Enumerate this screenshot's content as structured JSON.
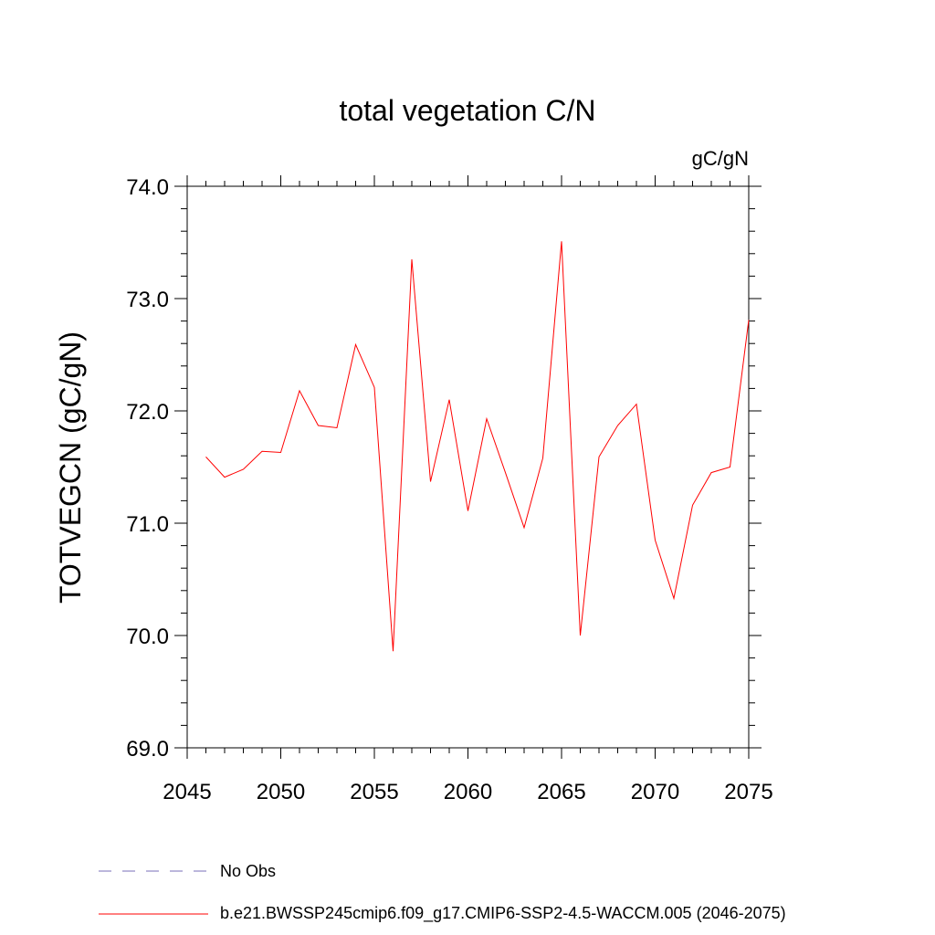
{
  "chart_data": {
    "type": "line",
    "title": "total vegetation C/N",
    "units_label": "gC/gN",
    "xlabel": "",
    "ylabel": "TOTVEGCN  (gC/gN)",
    "xlim": [
      2045,
      2075
    ],
    "ylim": [
      69.0,
      74.0
    ],
    "x_ticks": [
      "2045",
      "2050",
      "2055",
      "2060",
      "2065",
      "2070",
      "2075"
    ],
    "y_ticks": [
      "69.0",
      "70.0",
      "71.0",
      "72.0",
      "73.0",
      "74.0"
    ],
    "grid": false,
    "series": [
      {
        "name": "b.e21.BWSSP245cmip6.f09_g17.CMIP6-SSP2-4.5-WACCM.005 (2046-2075)",
        "color": "#ff0000",
        "style": "solid",
        "x": [
          2046,
          2047,
          2048,
          2049,
          2050,
          2051,
          2052,
          2053,
          2054,
          2055,
          2056,
          2057,
          2058,
          2059,
          2060,
          2061,
          2062,
          2063,
          2064,
          2065,
          2066,
          2067,
          2068,
          2069,
          2070,
          2071,
          2072,
          2073,
          2074,
          2075
        ],
        "y": [
          71.59,
          71.41,
          71.48,
          71.64,
          71.63,
          72.18,
          71.87,
          71.85,
          72.59,
          72.21,
          69.86,
          73.35,
          71.37,
          72.1,
          71.11,
          71.93,
          71.45,
          70.96,
          71.58,
          73.51,
          70.0,
          71.59,
          71.87,
          72.06,
          70.85,
          70.33,
          71.16,
          71.45,
          71.5,
          72.81
        ]
      }
    ],
    "legend": {
      "placement": "bottom",
      "entries": [
        {
          "label": "No Obs",
          "color": "#7a6fb8",
          "style": "dashed"
        },
        {
          "label": "b.e21.BWSSP245cmip6.f09_g17.CMIP6-SSP2-4.5-WACCM.005 (2046-2075)",
          "color": "#ff0000",
          "style": "solid"
        }
      ]
    }
  }
}
